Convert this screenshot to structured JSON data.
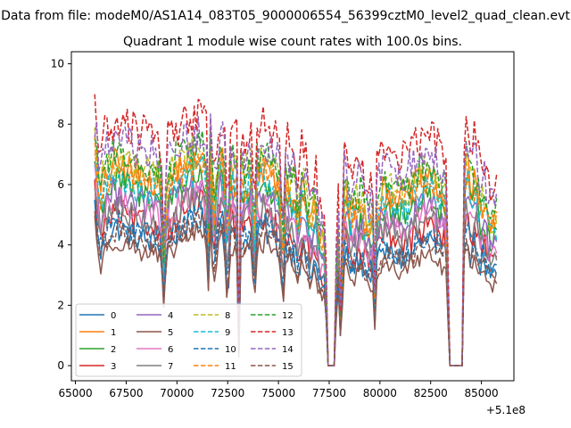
{
  "figure": {
    "suptitle": "Data from file: modeM0/AS1A14_083T05_9000006554_56399cztM0_level2_quad_clean.evt"
  },
  "chart_data": {
    "type": "line",
    "title": "Quadrant 1 module wise count rates with 100.0s bins.",
    "xlabel": "",
    "ylabel": "",
    "x_offset_label": "+5.1e8",
    "xlim": [
      64800,
      86600
    ],
    "ylim": [
      -0.5,
      10.4
    ],
    "x_ticks": [
      65000,
      67500,
      70000,
      72500,
      75000,
      77500,
      80000,
      82500,
      85000
    ],
    "x_tick_labels": [
      "65000",
      "67500",
      "70000",
      "72500",
      "75000",
      "77500",
      "80000",
      "82500",
      "85000"
    ],
    "y_ticks": [
      0,
      2,
      4,
      6,
      8,
      10
    ],
    "y_tick_labels": [
      "0",
      "2",
      "4",
      "6",
      "8",
      "10"
    ],
    "grid": false,
    "legend_position": "lower left",
    "legend_columns": 4,
    "x_start": 65950,
    "x_end": 85750,
    "bin_width": 100,
    "envelope": {
      "description_free": true,
      "x": [
        65950,
        66100,
        66200,
        66350,
        66600,
        67000,
        67600,
        68200,
        68800,
        69200,
        69350,
        69500,
        70000,
        70600,
        71200,
        71450,
        71500,
        71650,
        71800,
        72100,
        72300,
        72500,
        72650,
        72950,
        73050,
        73150,
        73300,
        73700,
        73800,
        73950,
        74300,
        74800,
        75100,
        75200,
        75350,
        75800,
        76000,
        76200,
        76400,
        76600,
        76800,
        77000,
        77300,
        77450,
        77500,
        77800,
        77900,
        78050,
        78250,
        78600,
        79000,
        79400,
        79700,
        79750,
        79850,
        80300,
        80800,
        81300,
        81900,
        82500,
        82800,
        83100,
        83300,
        83400,
        83500,
        83600,
        84100,
        84150,
        84300,
        84450,
        84700,
        84900,
        85100,
        85400,
        85750
      ],
      "base": [
        5.2,
        4.3,
        3.4,
        3.9,
        4.2,
        4.5,
        4.3,
        4.1,
        4.0,
        3.9,
        2.1,
        3.8,
        4.3,
        4.6,
        4.8,
        4.2,
        1.8,
        4.9,
        3.0,
        4.7,
        4.5,
        2.1,
        4.3,
        4.0,
        0.3,
        4.1,
        3.9,
        4.3,
        2.0,
        4.2,
        4.4,
        4.1,
        3.7,
        1.9,
        3.9,
        3.5,
        3.1,
        3.8,
        3.3,
        2.8,
        3.4,
        2.6,
        2.5,
        0.0,
        0.0,
        0.0,
        3.7,
        1.0,
        3.6,
        3.1,
        3.4,
        2.9,
        3.0,
        1.4,
        3.3,
        3.7,
        3.5,
        3.4,
        3.9,
        4.1,
        3.7,
        3.5,
        3.4,
        0.0,
        0.0,
        0.0,
        0.0,
        3.9,
        4.5,
        3.6,
        4.0,
        3.2,
        3.5,
        2.9,
        3.0
      ]
    },
    "series": [
      {
        "name": "0",
        "color": "#1f77b4",
        "dashed": false,
        "offset": 0.1,
        "spread": 0.45
      },
      {
        "name": "1",
        "color": "#ff7f0e",
        "dashed": false,
        "offset": 2.2,
        "spread": 0.55
      },
      {
        "name": "2",
        "color": "#2ca02c",
        "dashed": false,
        "offset": 1.6,
        "spread": 0.55
      },
      {
        "name": "3",
        "color": "#d62728",
        "dashed": false,
        "offset": 0.6,
        "spread": 0.5
      },
      {
        "name": "4",
        "color": "#9467bd",
        "dashed": false,
        "offset": 1.3,
        "spread": 0.55
      },
      {
        "name": "5",
        "color": "#8c564b",
        "dashed": false,
        "offset": -0.3,
        "spread": 0.35
      },
      {
        "name": "6",
        "color": "#e377c2",
        "dashed": false,
        "offset": 1.0,
        "spread": 0.5
      },
      {
        "name": "7",
        "color": "#7f7f7f",
        "dashed": false,
        "offset": 0.8,
        "spread": 0.5
      },
      {
        "name": "8",
        "color": "#bcbd22",
        "dashed": true,
        "offset": 2.4,
        "spread": 0.6
      },
      {
        "name": "9",
        "color": "#17becf",
        "dashed": true,
        "offset": 1.8,
        "spread": 0.55
      },
      {
        "name": "10",
        "color": "#1f77b4",
        "dashed": true,
        "offset": 0.3,
        "spread": 0.4
      },
      {
        "name": "11",
        "color": "#ff7f0e",
        "dashed": true,
        "offset": 2.0,
        "spread": 0.55
      },
      {
        "name": "12",
        "color": "#2ca02c",
        "dashed": true,
        "offset": 2.6,
        "spread": 0.6
      },
      {
        "name": "13",
        "color": "#d62728",
        "dashed": true,
        "offset": 3.6,
        "spread": 0.7
      },
      {
        "name": "14",
        "color": "#9467bd",
        "dashed": true,
        "offset": 3.0,
        "spread": 0.65
      },
      {
        "name": "15",
        "color": "#8c564b",
        "dashed": true,
        "offset": 0.0,
        "spread": 0.4
      }
    ]
  }
}
